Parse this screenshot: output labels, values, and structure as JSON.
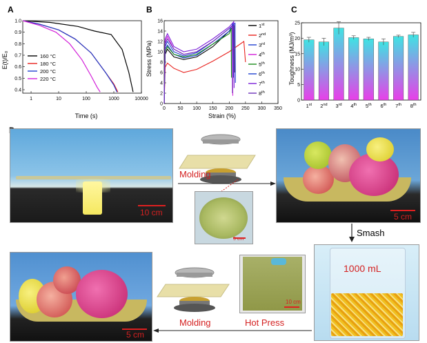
{
  "panel_labels": {
    "a": "A",
    "b": "B",
    "c": "C",
    "d": "D"
  },
  "chart_data": [
    {
      "type": "line",
      "id": "A",
      "xlabel": "Time (s)",
      "ylabel": "E(t)/E₀",
      "xscale": "log",
      "xlim": [
        0.5,
        10000
      ],
      "ylim": [
        0.37,
        1.0
      ],
      "xticks": [
        {
          "v": 1,
          "l": "1"
        },
        {
          "v": 10,
          "l": "10"
        },
        {
          "v": 100,
          "l": "100"
        },
        {
          "v": 1000,
          "l": "1000"
        },
        {
          "v": 10000,
          "l": "10000"
        }
      ],
      "yticks": [
        "0.4",
        "0.5",
        "0.6",
        "0.7",
        "0.8",
        "0.9",
        "1.0"
      ],
      "legend_position": "left",
      "series": [
        {
          "name": "160 °C",
          "color": "#000000",
          "x": [
            0.5,
            5,
            50,
            200,
            800,
            2000,
            3500,
            5000
          ],
          "y": [
            1.0,
            0.985,
            0.95,
            0.91,
            0.88,
            0.75,
            0.55,
            0.38
          ]
        },
        {
          "name": "180 °C",
          "color": "#e8211d",
          "x": [
            0.5,
            2,
            10,
            40,
            150,
            500,
            1000,
            1400
          ],
          "y": [
            1.0,
            0.97,
            0.92,
            0.84,
            0.72,
            0.55,
            0.45,
            0.38
          ]
        },
        {
          "name": "200 °C",
          "color": "#1f3fcf",
          "x": [
            0.5,
            2,
            10,
            40,
            150,
            500,
            1000,
            1300
          ],
          "y": [
            1.0,
            0.97,
            0.92,
            0.84,
            0.72,
            0.55,
            0.44,
            0.38
          ]
        },
        {
          "name": "220 °C",
          "color": "#d21fd8",
          "x": [
            0.5,
            2,
            8,
            25,
            70,
            150,
            250,
            320
          ],
          "y": [
            1.0,
            0.96,
            0.9,
            0.8,
            0.66,
            0.52,
            0.42,
            0.38
          ]
        }
      ]
    },
    {
      "type": "line",
      "id": "B",
      "xlabel": "Strain (%)",
      "ylabel": "Stress (MPa)",
      "xlim": [
        0,
        350
      ],
      "ylim": [
        0,
        16
      ],
      "xticks": [
        "0",
        "50",
        "100",
        "150",
        "200",
        "250",
        "300",
        "350"
      ],
      "yticks": [
        "0",
        "2",
        "4",
        "6",
        "8",
        "10",
        "12",
        "14",
        "16"
      ],
      "legend_position": "right",
      "series": [
        {
          "name": "1st",
          "color": "#000000",
          "x": [
            0,
            3,
            10,
            30,
            60,
            100,
            150,
            200,
            215,
            216
          ],
          "y": [
            0,
            9.5,
            10.5,
            9.0,
            8.5,
            9.0,
            11,
            14,
            15,
            6
          ]
        },
        {
          "name": "2nd",
          "color": "#e8211d",
          "x": [
            0,
            3,
            10,
            30,
            60,
            100,
            150,
            200,
            245,
            250
          ],
          "y": [
            0,
            7,
            7.8,
            6.8,
            6.0,
            6.6,
            8.2,
            10,
            12,
            8
          ]
        },
        {
          "name": "3rd",
          "color": "#1f3fcf",
          "x": [
            0,
            3,
            10,
            30,
            60,
            100,
            150,
            200,
            212,
            213
          ],
          "y": [
            0,
            10.5,
            11.3,
            9.5,
            8.8,
            9.3,
            11.5,
            14,
            15.5,
            5
          ]
        },
        {
          "name": "4th",
          "color": "#d21fd8",
          "x": [
            0,
            3,
            10,
            30,
            60,
            100,
            150,
            200,
            210,
            211
          ],
          "y": [
            0,
            12,
            13,
            10.5,
            9.5,
            10,
            12,
            14.5,
            15,
            1.5
          ]
        },
        {
          "name": "5th",
          "color": "#1a8c1a",
          "x": [
            0,
            3,
            10,
            30,
            60,
            100,
            150,
            200,
            206,
            207
          ],
          "y": [
            0,
            10,
            11,
            9.5,
            9.0,
            9.5,
            11.5,
            13.5,
            14.5,
            5
          ]
        },
        {
          "name": "6th",
          "color": "#1f3fcf",
          "x": [
            0,
            3,
            10,
            30,
            60,
            100,
            150,
            200,
            218,
            219
          ],
          "y": [
            0,
            11,
            12,
            10,
            9.2,
            9.8,
            12,
            14.5,
            15.5,
            4
          ]
        },
        {
          "name": "7th",
          "color": "#7a1fd8",
          "x": [
            0,
            3,
            10,
            30,
            60,
            100,
            150,
            200,
            214,
            215
          ],
          "y": [
            0,
            12.5,
            13.5,
            11,
            10,
            10.5,
            12.5,
            14.8,
            15.8,
            3
          ]
        },
        {
          "name": "8th",
          "color": "#6b2fb8",
          "x": [
            0,
            3,
            10,
            30,
            60,
            100,
            150,
            200,
            209,
            210
          ],
          "y": [
            0,
            11.5,
            12.5,
            10.5,
            9.5,
            10,
            12,
            14.5,
            15,
            2
          ]
        }
      ]
    },
    {
      "type": "bar",
      "id": "C",
      "ylabel": "Toughness (MJ/m³)",
      "ylim": [
        0,
        25
      ],
      "yticks": [
        "0",
        "5",
        "10",
        "15",
        "20",
        "25"
      ],
      "categories": [
        {
          "n": "1",
          "s": "st"
        },
        {
          "n": "2",
          "s": "nd"
        },
        {
          "n": "3",
          "s": "rd"
        },
        {
          "n": "4",
          "s": "th"
        },
        {
          "n": "5",
          "s": "th"
        },
        {
          "n": "6",
          "s": "th"
        },
        {
          "n": "7",
          "s": "th"
        },
        {
          "n": "8",
          "s": "th"
        }
      ],
      "values": [
        19.5,
        18.8,
        23.3,
        20.2,
        19.8,
        18.8,
        20.6,
        21.1
      ],
      "errors": [
        0.8,
        1.2,
        2.0,
        0.6,
        0.5,
        1.0,
        0.4,
        0.8
      ],
      "gradient_top": "#3fe3e3",
      "gradient_bottom": "#e83fe8"
    }
  ],
  "photos": {
    "scale_10cm": "10 cm",
    "scale_5cm_top": "5 cm",
    "scale_10cm_small": "10 cm",
    "scale_5cm_bottom": "5 cm",
    "scale_5cm_inset": "5 cm",
    "beaker_volume": "1000 mL",
    "molding_top": "Molding",
    "molding_bottom": "Molding",
    "hot_press": "Hot Press",
    "smash": "Smash"
  }
}
